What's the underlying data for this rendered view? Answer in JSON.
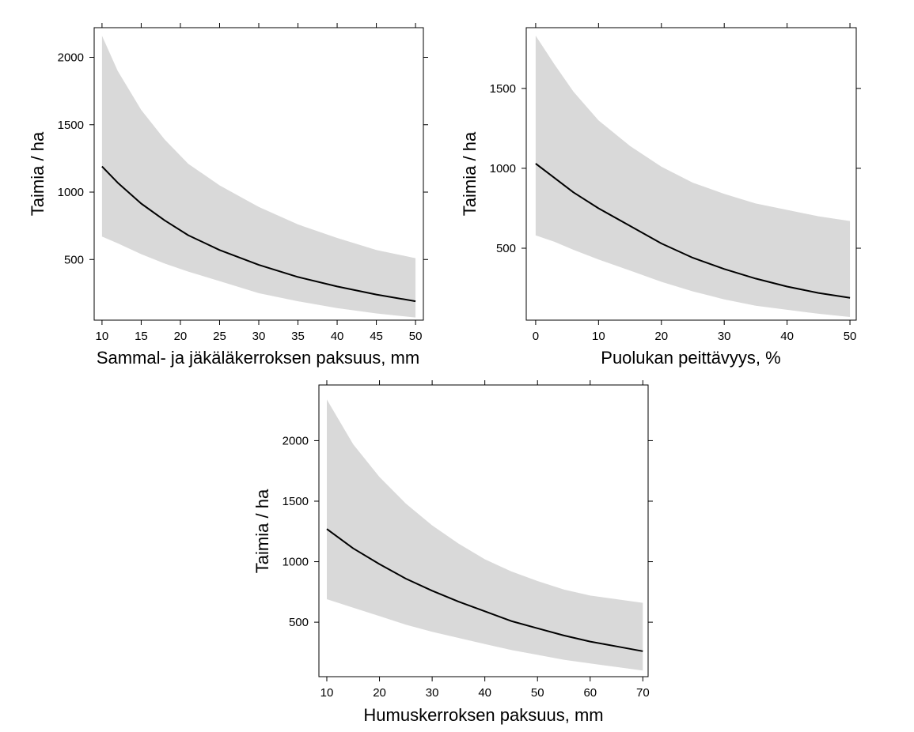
{
  "chart_data": [
    {
      "type": "line",
      "xlabel": "Sammal- ja jäkäläkerroksen paksuus, mm",
      "ylabel": "Taimia / ha",
      "xlim": [
        9,
        51
      ],
      "ylim": [
        50,
        2220
      ],
      "xticks": [
        10,
        15,
        20,
        25,
        30,
        35,
        40,
        45,
        50
      ],
      "yticks": [
        500,
        1000,
        1500,
        2000
      ],
      "grid": false,
      "band_color": "#d9d9d9",
      "line_color": "#000000",
      "x": [
        10,
        12,
        15,
        18,
        21,
        25,
        30,
        35,
        40,
        45,
        50
      ],
      "y": [
        1190,
        1070,
        915,
        790,
        680,
        570,
        460,
        370,
        300,
        240,
        190
      ],
      "lower": [
        670,
        620,
        540,
        470,
        410,
        340,
        250,
        190,
        140,
        100,
        70
      ],
      "upper": [
        2160,
        1900,
        1610,
        1390,
        1210,
        1050,
        890,
        760,
        660,
        570,
        510
      ]
    },
    {
      "type": "line",
      "xlabel": "Puolukan peittävyys, %",
      "ylabel": "Taimia / ha",
      "xlim": [
        -1.5,
        51
      ],
      "ylim": [
        50,
        1880
      ],
      "xticks": [
        0,
        10,
        20,
        30,
        40,
        50
      ],
      "yticks": [
        500,
        1000,
        1500
      ],
      "grid": false,
      "band_color": "#d9d9d9",
      "line_color": "#000000",
      "x": [
        0,
        3,
        6,
        10,
        15,
        20,
        25,
        30,
        35,
        40,
        45,
        50
      ],
      "y": [
        1030,
        940,
        850,
        750,
        640,
        530,
        440,
        370,
        310,
        260,
        220,
        190
      ],
      "lower": [
        580,
        540,
        490,
        430,
        360,
        290,
        230,
        180,
        140,
        115,
        90,
        70
      ],
      "upper": [
        1830,
        1650,
        1480,
        1300,
        1140,
        1010,
        910,
        840,
        780,
        740,
        700,
        670
      ]
    },
    {
      "type": "line",
      "xlabel": "Humuskerroksen paksuus, mm",
      "ylabel": "Taimia / ha",
      "xlim": [
        8.5,
        71
      ],
      "ylim": [
        50,
        2460
      ],
      "xticks": [
        10,
        20,
        30,
        40,
        50,
        60,
        70
      ],
      "yticks": [
        500,
        1000,
        1500,
        2000
      ],
      "grid": false,
      "band_color": "#d9d9d9",
      "line_color": "#000000",
      "x": [
        10,
        15,
        20,
        25,
        30,
        35,
        40,
        45,
        50,
        55,
        60,
        65,
        70
      ],
      "y": [
        1270,
        1110,
        980,
        860,
        760,
        670,
        590,
        510,
        450,
        390,
        340,
        300,
        260
      ],
      "lower": [
        690,
        620,
        550,
        480,
        420,
        370,
        320,
        270,
        230,
        190,
        160,
        130,
        100
      ],
      "upper": [
        2340,
        1970,
        1700,
        1480,
        1300,
        1150,
        1020,
        920,
        840,
        770,
        720,
        690,
        660
      ]
    }
  ]
}
